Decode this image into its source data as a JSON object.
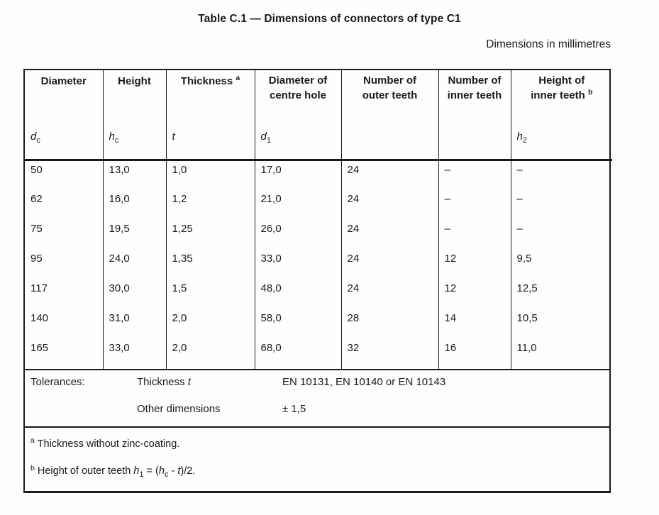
{
  "title": "Table C.1 — Dimensions of connectors of type C1",
  "units_note": "Dimensions in millimetres",
  "colors": {
    "ink": "#1a1a1a",
    "background": "#fefefe"
  },
  "table": {
    "columns": [
      {
        "label": "Diameter",
        "sup": "",
        "sym_base": "d",
        "sym_sub": "c"
      },
      {
        "label": "Height",
        "sup": "",
        "sym_base": "h",
        "sym_sub": "c"
      },
      {
        "label": "Thickness",
        "sup": "a",
        "sym_base": "t",
        "sym_sub": ""
      },
      {
        "label": "Diameter of centre hole",
        "sup": "",
        "sym_base": "d",
        "sym_sub": "1"
      },
      {
        "label": "Number of outer teeth",
        "sup": "",
        "sym_base": "",
        "sym_sub": ""
      },
      {
        "label": "Number of inner teeth",
        "sup": "",
        "sym_base": "",
        "sym_sub": ""
      },
      {
        "label": "Height of inner teeth",
        "sup": "b",
        "sym_base": "h",
        "sym_sub": "2"
      }
    ],
    "rows": [
      [
        "50",
        "13,0",
        "1,0",
        "17,0",
        "24",
        "–",
        "–"
      ],
      [
        "62",
        "16,0",
        "1,2",
        "21,0",
        "24",
        "–",
        "–"
      ],
      [
        "75",
        "19,5",
        "1,25",
        "26,0",
        "24",
        "–",
        "–"
      ],
      [
        "95",
        "24,0",
        "1,35",
        "33,0",
        "24",
        "12",
        "9,5"
      ],
      [
        "117",
        "30,0",
        "1,5",
        "48,0",
        "24",
        "12",
        "12,5"
      ],
      [
        "140",
        "31,0",
        "2,0",
        "58,0",
        "28",
        "14",
        "10,5"
      ],
      [
        "165",
        "33,0",
        "2,0",
        "68,0",
        "32",
        "16",
        "11,0"
      ]
    ]
  },
  "tolerances": {
    "label": "Tolerances:",
    "entries": [
      {
        "name_prefix": "Thickness ",
        "name_italic": "t",
        "value": "EN 10131, EN 10140 or EN 10143"
      },
      {
        "name_prefix": "Other dimensions",
        "name_italic": "",
        "value": "± 1,5"
      }
    ]
  },
  "footnotes": {
    "a": {
      "marker": "a",
      "text": "Thickness without zinc-coating."
    },
    "b": {
      "marker": "b",
      "prefix": "Height of outer teeth ",
      "f1_base": "h",
      "f1_sub": "1",
      "eq": " = (",
      "f2_base": "h",
      "f2_sub": "c",
      "minus": " - ",
      "t_sym": "t",
      "suffix": ")/2."
    }
  }
}
